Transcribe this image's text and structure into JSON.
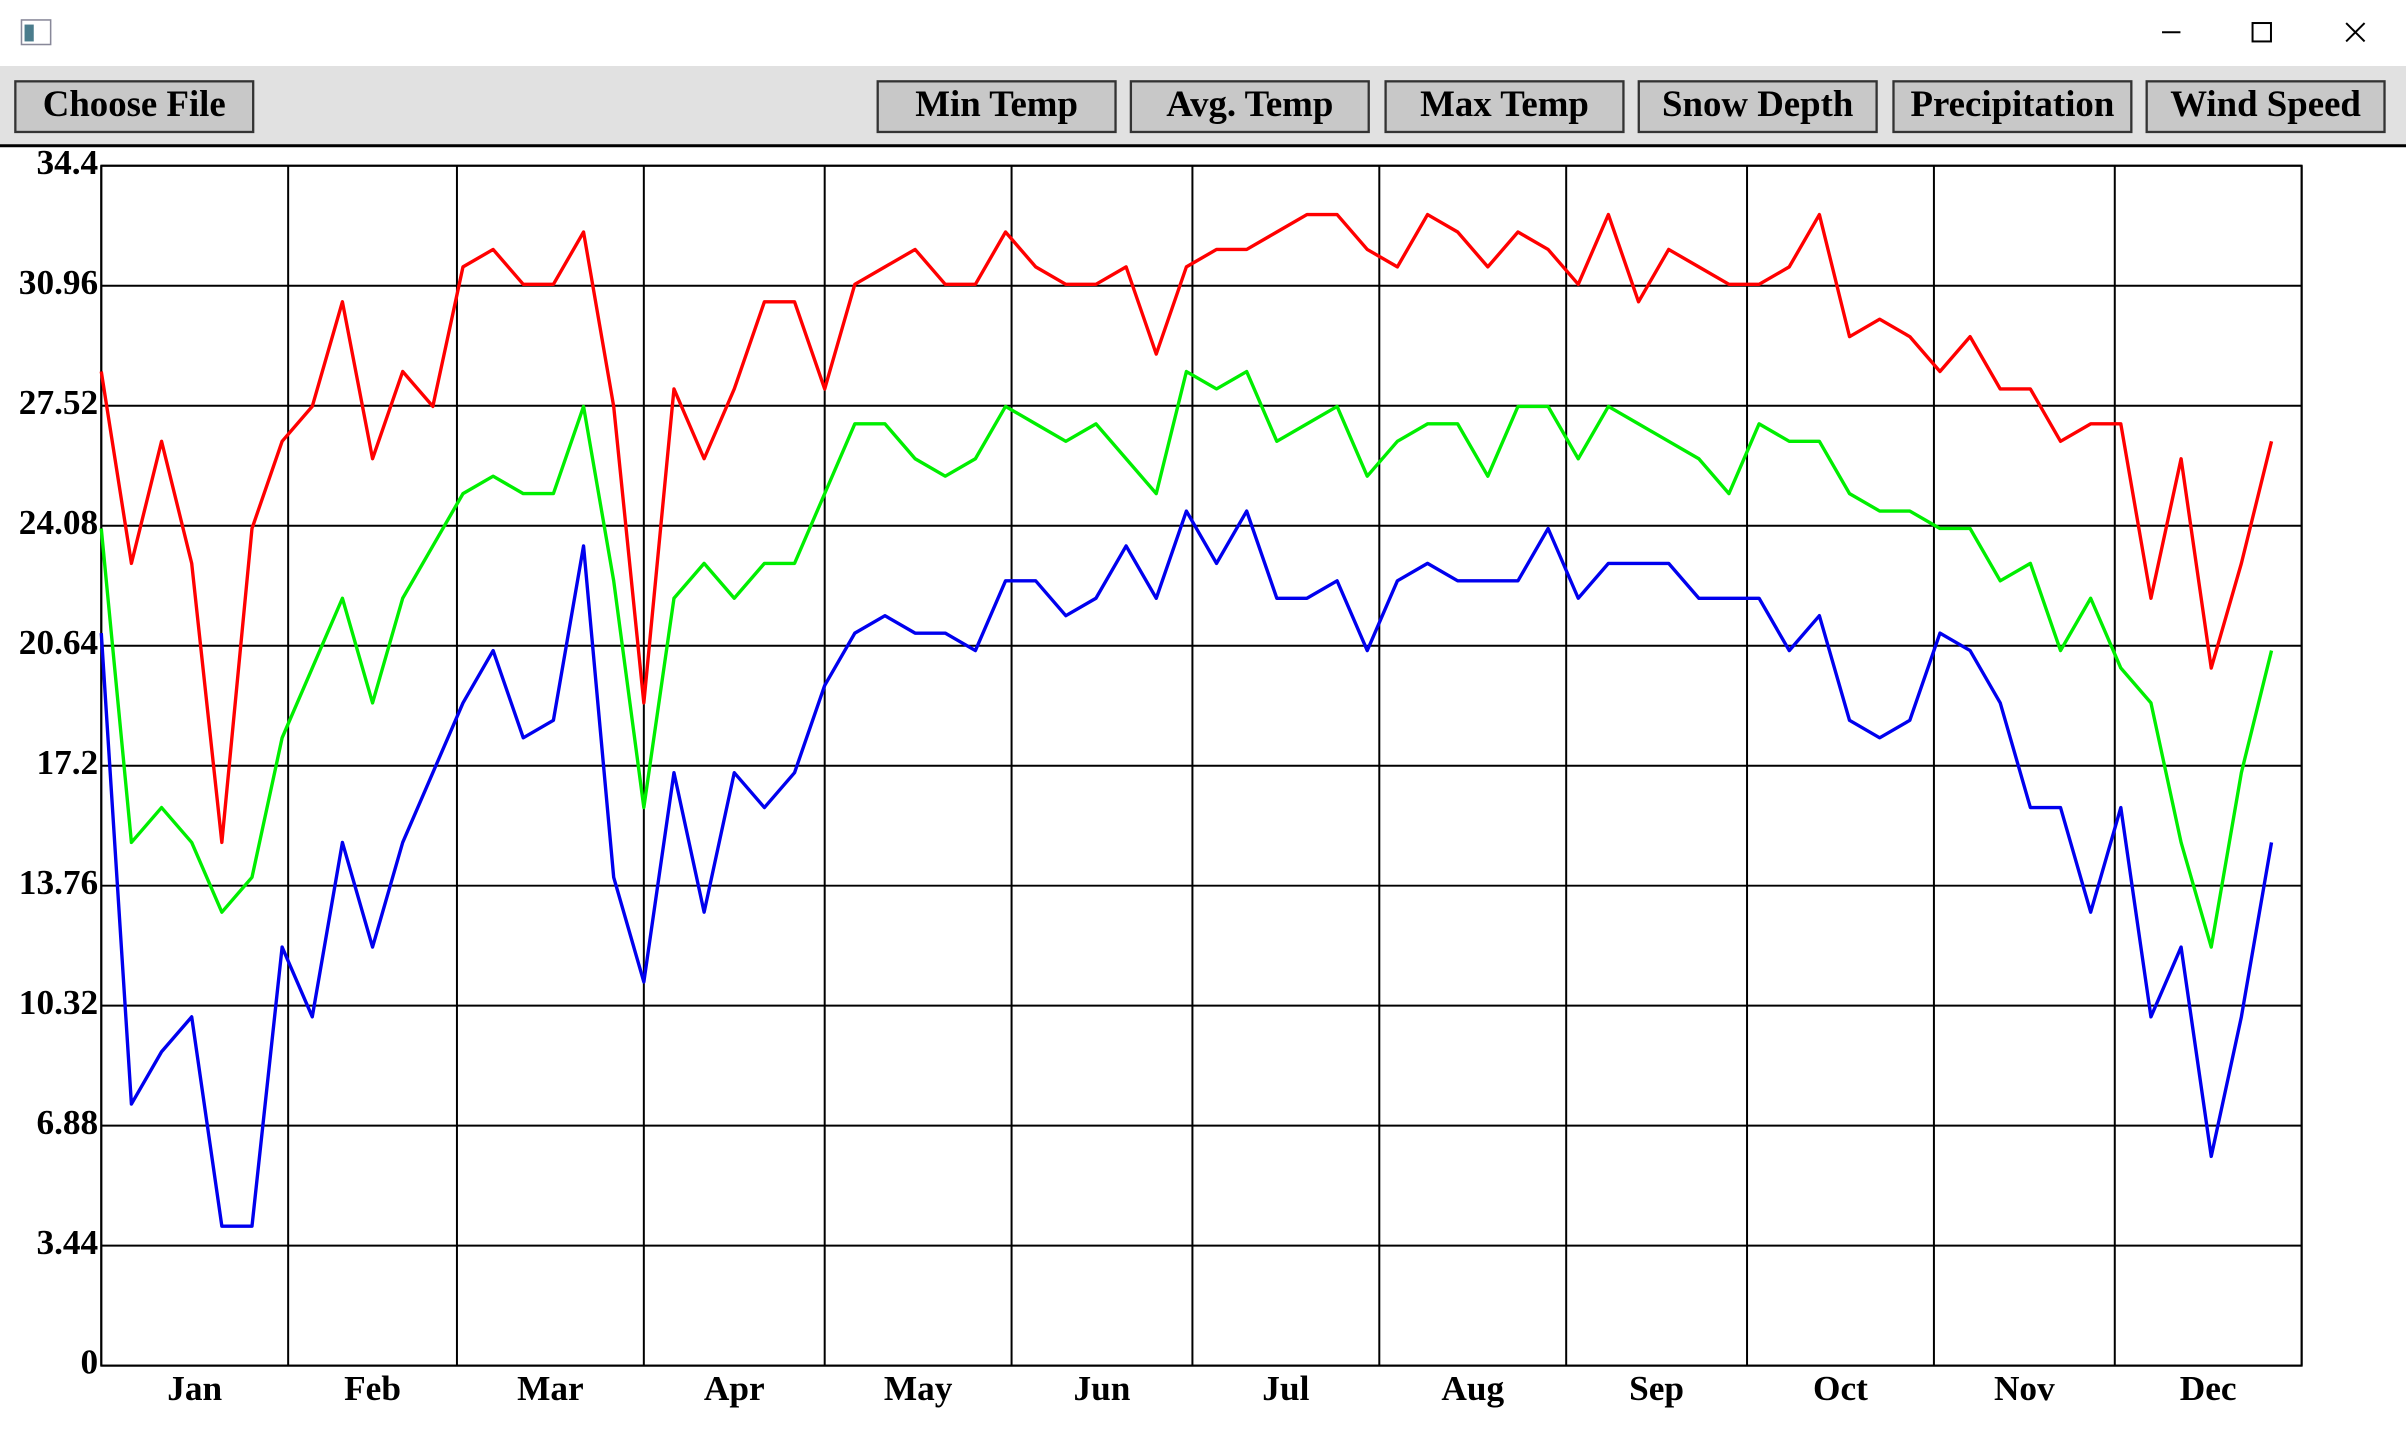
{
  "toolbar": {
    "buttons": [
      "Choose File",
      "Min Temp",
      "Avg. Temp",
      "Max Temp",
      "Snow Depth",
      "Precipitation",
      "Wind Speed"
    ]
  },
  "chart_data": {
    "type": "line",
    "categories": [
      "Jan",
      "Feb",
      "Mar",
      "Apr",
      "May",
      "Jun",
      "Jul",
      "Aug",
      "Sep",
      "Oct",
      "Nov",
      "Dec"
    ],
    "x": [
      0,
      5,
      10,
      15,
      20,
      25,
      30,
      35,
      40,
      45,
      50,
      55,
      60,
      65,
      70,
      75,
      80,
      85,
      90,
      95,
      100,
      105,
      110,
      115,
      120,
      125,
      130,
      135,
      140,
      145,
      150,
      155,
      160,
      165,
      170,
      175,
      180,
      185,
      190,
      195,
      200,
      205,
      210,
      215,
      220,
      225,
      230,
      235,
      240,
      245,
      250,
      255,
      260,
      265,
      270,
      275,
      280,
      285,
      290,
      295,
      300,
      305,
      310,
      315,
      320,
      325,
      330,
      335,
      340,
      345,
      350,
      355,
      360
    ],
    "xlim": [
      0,
      365
    ],
    "xticks": [
      0,
      31,
      59,
      90,
      120,
      151,
      181,
      212,
      243,
      273,
      304,
      334,
      365
    ],
    "ylim": [
      0,
      34.4
    ],
    "yticks": [
      0,
      3.44,
      6.88,
      10.32,
      13.76,
      17.2,
      20.64,
      24.08,
      27.52,
      30.96,
      34.4
    ],
    "grid": true,
    "series": [
      {
        "color": "#ff0000",
        "values": [
          28.5,
          23,
          26.5,
          23,
          15,
          24,
          26.5,
          27.5,
          30.5,
          26,
          28.5,
          27.5,
          31.5,
          32,
          31,
          31,
          32.5,
          27.5,
          19,
          28,
          26,
          28,
          30.5,
          30.5,
          28,
          31,
          31.5,
          32,
          31,
          31,
          32.5,
          31.5,
          31,
          31,
          31.5,
          29,
          31.5,
          32,
          32,
          32.5,
          33,
          33,
          32,
          31.5,
          33,
          32.5,
          31.5,
          32.5,
          32,
          31,
          33,
          30.5,
          32,
          31.5,
          31,
          31,
          31.5,
          33,
          29.5,
          30,
          29.5,
          28.5,
          29.5,
          28,
          28,
          26.5,
          27,
          27,
          22,
          26,
          20,
          23,
          26.5
        ]
      },
      {
        "color": "#00ee00",
        "values": [
          24,
          15,
          16,
          15,
          13,
          14,
          18,
          20,
          22,
          19,
          22,
          23.5,
          25,
          25.5,
          25,
          25,
          27.5,
          22.5,
          16,
          22,
          23,
          22,
          23,
          23,
          25,
          27,
          27,
          26,
          25.5,
          26,
          27.5,
          27,
          26.5,
          27,
          26,
          25,
          28.5,
          28,
          28.5,
          26.5,
          27,
          27.5,
          25.5,
          26.5,
          27,
          27,
          25.5,
          27.5,
          27.5,
          26,
          27.5,
          27,
          26.5,
          26,
          25,
          27,
          26.5,
          26.5,
          25,
          24.5,
          24.5,
          24,
          24,
          22.5,
          23,
          20.5,
          22,
          20,
          19,
          15,
          12,
          17,
          20.5
        ]
      },
      {
        "color": "#0000ee",
        "values": [
          21,
          7.5,
          9,
          10,
          4,
          4,
          12,
          10,
          15,
          12,
          15,
          17,
          19,
          20.5,
          18,
          18.5,
          23.5,
          14,
          11,
          17,
          13,
          17,
          16,
          17,
          19.5,
          21,
          21.5,
          21,
          21,
          20.5,
          22.5,
          22.5,
          21.5,
          22,
          23.5,
          22,
          24.5,
          23,
          24.5,
          22,
          22,
          22.5,
          20.5,
          22.5,
          23,
          22.5,
          22.5,
          22.5,
          24,
          22,
          23,
          23,
          23,
          22,
          22,
          22,
          20.5,
          21.5,
          18.5,
          18,
          18.5,
          21,
          20.5,
          19,
          16,
          16,
          13,
          16,
          10,
          12,
          6,
          10,
          15
        ]
      }
    ]
  }
}
